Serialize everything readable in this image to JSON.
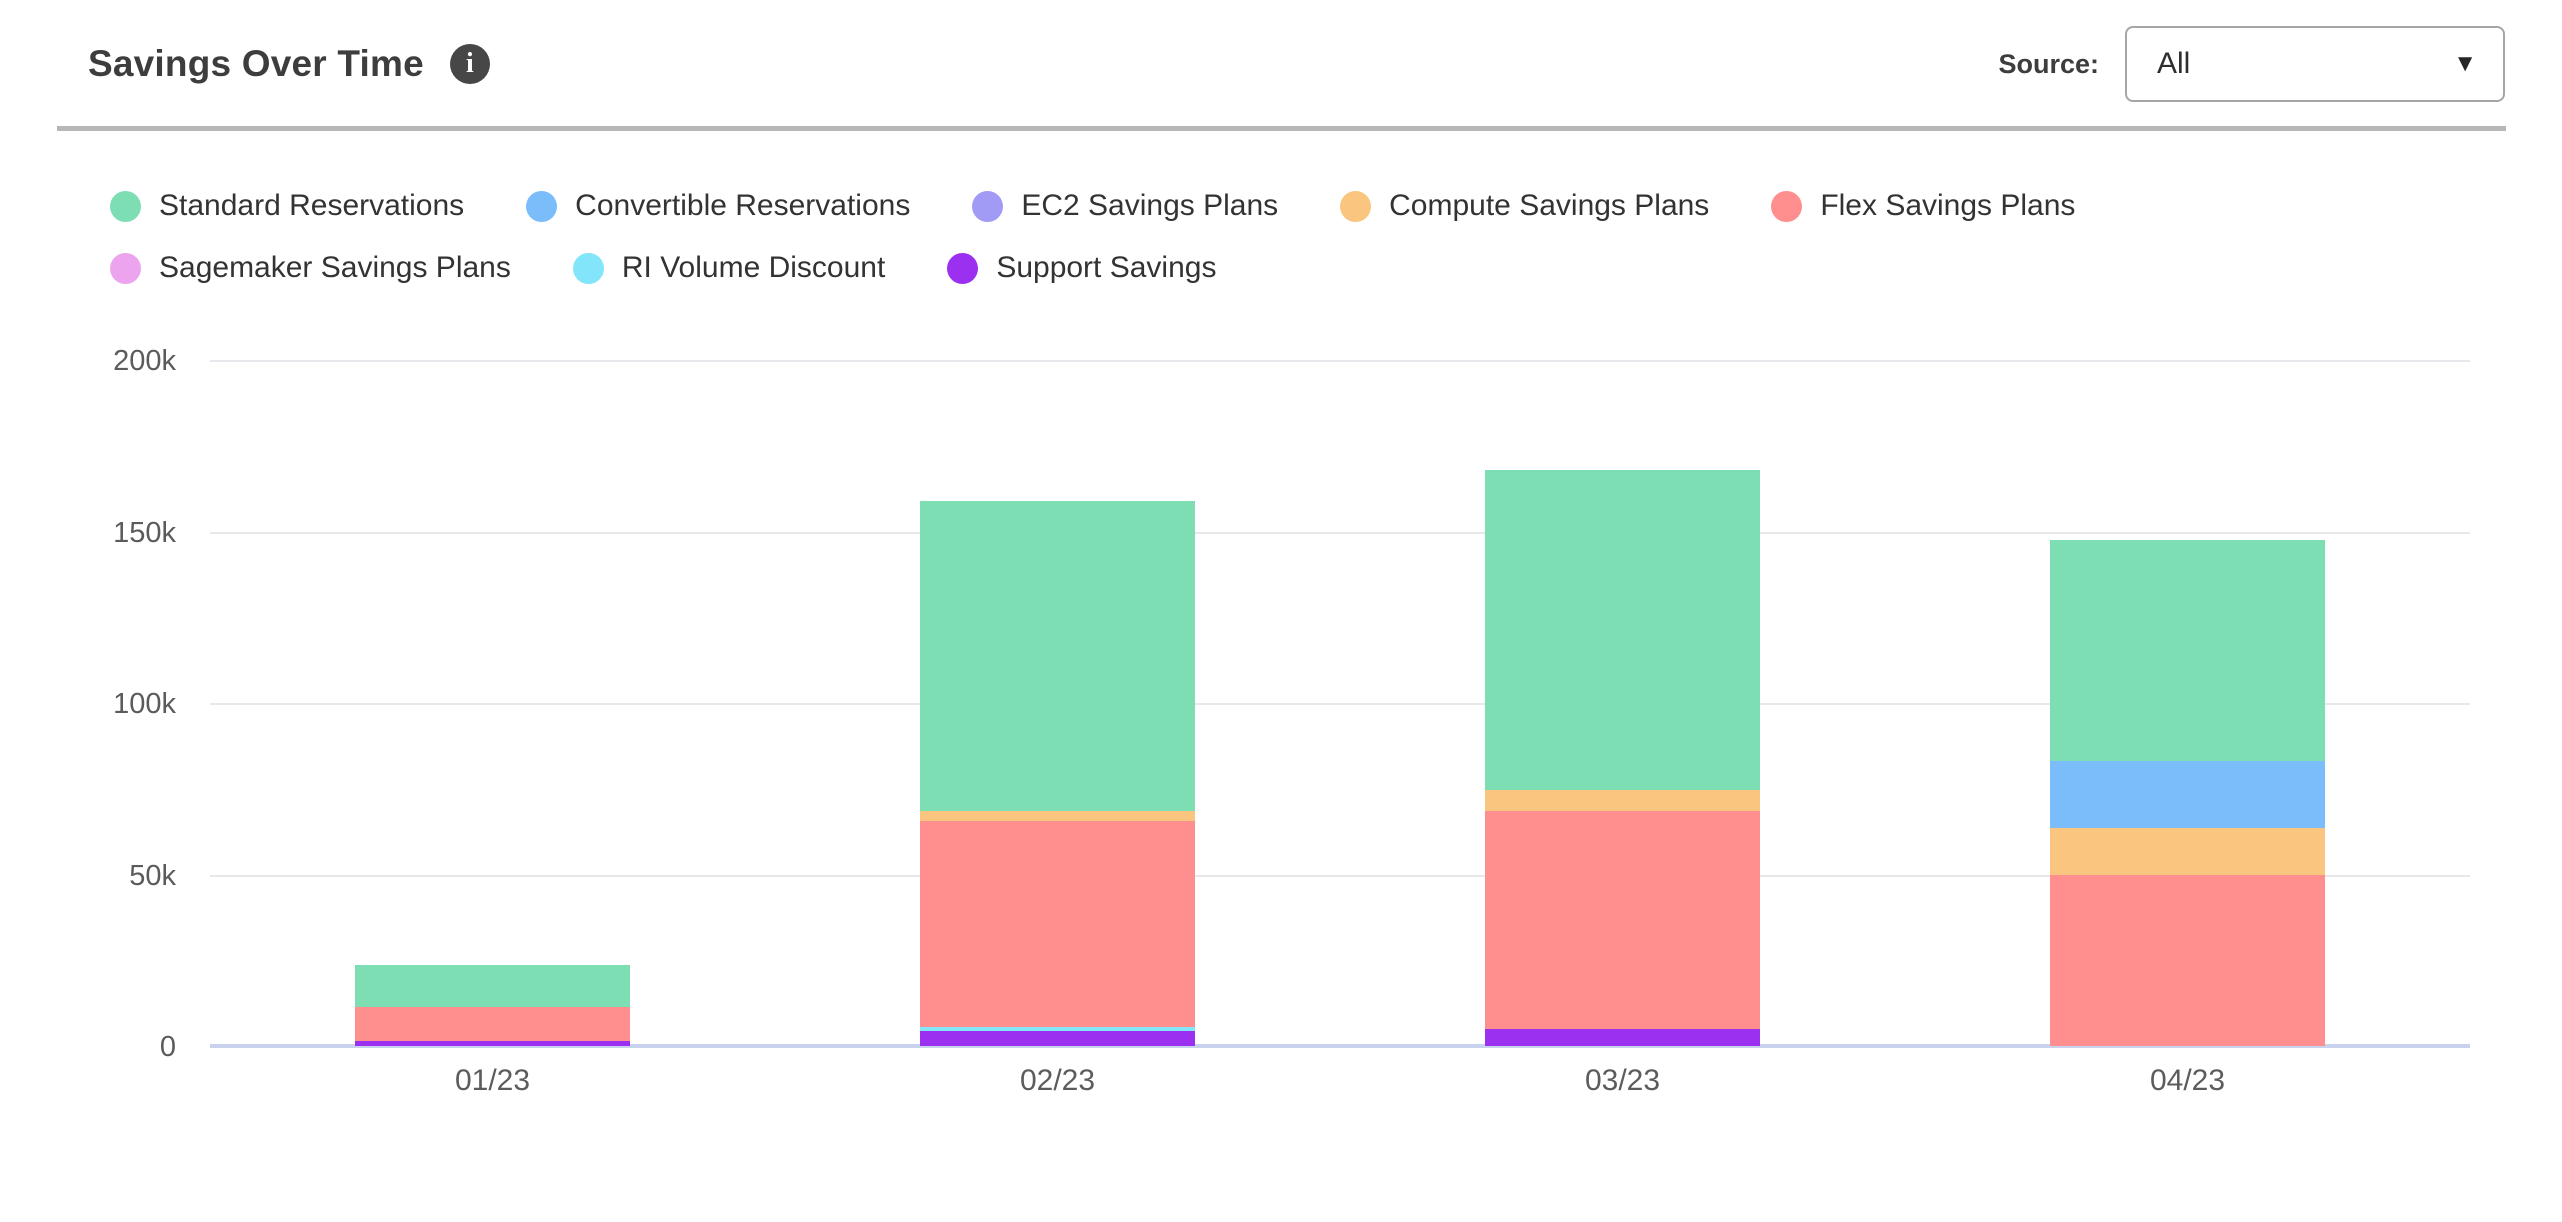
{
  "header": {
    "title": "Savings Over Time",
    "info_glyph": "i",
    "source_label": "Source:",
    "source_value": "All",
    "caret_glyph": "▼"
  },
  "chart_data": {
    "type": "bar",
    "stacked": true,
    "title": "Savings Over Time",
    "xlabel": "",
    "ylabel": "",
    "value_suffix": "k",
    "categories": [
      "01/23",
      "02/23",
      "03/23",
      "04/23"
    ],
    "series": [
      {
        "name": "Standard Reservations",
        "color": "#7ddeb3",
        "values": [
          12,
          90.5,
          93.5,
          64.5
        ]
      },
      {
        "name": "Convertible Reservations",
        "color": "#7bbcfb",
        "values": [
          0,
          0,
          0,
          19.5
        ]
      },
      {
        "name": "EC2 Savings Plans",
        "color": "#a29bf5",
        "values": [
          0,
          0,
          0,
          0
        ]
      },
      {
        "name": "Compute Savings Plans",
        "color": "#fac57e",
        "values": [
          0,
          3,
          6,
          13.5
        ]
      },
      {
        "name": "Flex Savings Plans",
        "color": "#ff8e8e",
        "values": [
          10,
          60,
          63.5,
          50
        ]
      },
      {
        "name": "Sagemaker Savings Plans",
        "color": "#eda4ee",
        "values": [
          0,
          0,
          0,
          0
        ]
      },
      {
        "name": "RI Volume Discount",
        "color": "#82e5fa",
        "values": [
          0,
          1,
          0,
          0
        ]
      },
      {
        "name": "Support Savings",
        "color": "#9c30f0",
        "values": [
          1.5,
          4.5,
          5,
          0
        ]
      }
    ],
    "stack_order_note": "bottom-to-top stacking is reverse of series/legend order",
    "totals": [
      23.5,
      159,
      168,
      147.5
    ],
    "ylim": [
      0,
      200
    ],
    "y_ticks": {
      "values": [
        200,
        150,
        100,
        50,
        0
      ],
      "labels": [
        "200k",
        "150k",
        "100k",
        "50k",
        "0"
      ]
    },
    "grid": true,
    "legend_position": "top-left",
    "colors": {
      "gridline": "#e8e8ec",
      "baseline": "#c8d2ec",
      "axis_text": "#5b5b5b"
    }
  }
}
